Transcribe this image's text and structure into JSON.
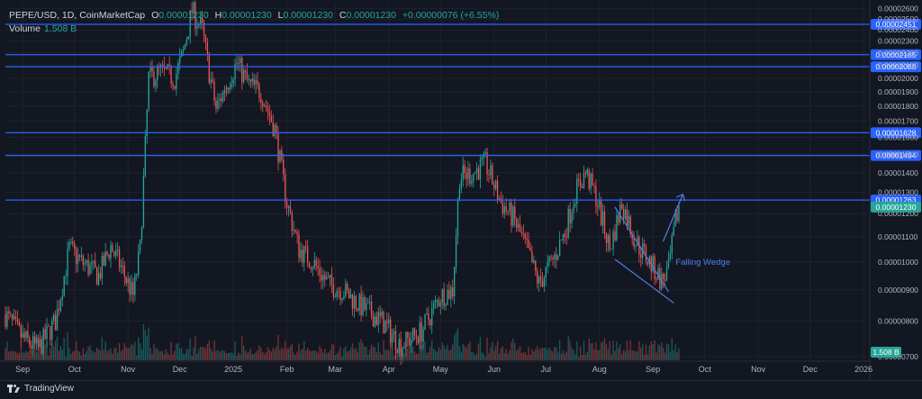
{
  "legend": {
    "symbol": "PEPE/USD, 1D, CoinMarketCap",
    "open_label": "O",
    "open": "0.00001230",
    "high_label": "H",
    "high": "0.00001230",
    "low_label": "L",
    "low": "0.00001230",
    "close_label": "C",
    "close": "0.00001230",
    "change": "+0.00000076 (+6.55%)",
    "volume_label": "Volume",
    "volume_value": "1.508 B"
  },
  "branding": {
    "name": "TradingView",
    "icon": "tradingview-logo-icon"
  },
  "colors": {
    "background": "#131722",
    "grid": "#1e222d",
    "up": "#26a69a",
    "down": "#ef5350",
    "level_line": "#2962ff",
    "annotation": "#4f7fe8",
    "axis_text": "#b2b5be"
  },
  "chart_data": {
    "type": "candlestick",
    "symbol": "PEPE/USD",
    "interval": "1D",
    "y_scale": "log",
    "ylim": [
      6.9e-06,
      2.65e-05
    ],
    "y_ticks": [
      "0.00002600",
      "0.00002500",
      "0.00002400",
      "0.00002300",
      "0.00002200",
      "0.00002100",
      "0.00002000",
      "0.00001900",
      "0.00001800",
      "0.00001700",
      "0.00001600",
      "0.00001500",
      "0.00001400",
      "0.00001300",
      "0.00001200",
      "0.00001100",
      "0.00001000",
      "0.00000900",
      "0.00000800",
      "0.00000700"
    ],
    "x_tick_labels": [
      "Sep",
      "Oct",
      "Nov",
      "Dec",
      "2025",
      "Feb",
      "Mar",
      "Apr",
      "May",
      "Jun",
      "Jul",
      "Aug",
      "Sep",
      "Oct",
      "Nov",
      "Dec",
      "2026"
    ],
    "horizontal_levels": [
      "0.00002451",
      "0.00002185",
      "0.00002088",
      "0.00001628",
      "0.00001494",
      "0.00001263"
    ],
    "last_price": "0.00001230",
    "volume_last": "1.508 B",
    "annotation": {
      "text": "Falling Wedge",
      "wedge_time": [
        "2025-08-10",
        "2025-09-10"
      ],
      "wedge_upper": [
        1.23e-05,
        9.5e-06
      ],
      "wedge_lower": [
        1.01e-05,
        9.1e-06
      ],
      "projection_to": 1.29e-05
    },
    "price_path": [
      [
        "2024-08-22",
        8.2e-06
      ],
      [
        "2024-09-01",
        7.5e-06
      ],
      [
        "2024-09-10",
        7.2e-06
      ],
      [
        "2024-09-20",
        8e-06
      ],
      [
        "2024-09-28",
        1.05e-05
      ],
      [
        "2024-10-05",
        1e-05
      ],
      [
        "2024-10-15",
        9.5e-06
      ],
      [
        "2024-10-22",
        1.06e-05
      ],
      [
        "2024-10-28",
        9.8e-06
      ],
      [
        "2024-11-04",
        8.8e-06
      ],
      [
        "2024-11-08",
        1.05e-05
      ],
      [
        "2024-11-13",
        2e-05
      ],
      [
        "2024-11-20",
        2.05e-05
      ],
      [
        "2024-11-28",
        2e-05
      ],
      [
        "2024-12-03",
        2.2e-05
      ],
      [
        "2024-12-08",
        2.58e-05
      ],
      [
        "2024-12-14",
        2.4e-05
      ],
      [
        "2024-12-18",
        2.05e-05
      ],
      [
        "2024-12-22",
        1.78e-05
      ],
      [
        "2024-12-28",
        1.95e-05
      ],
      [
        "2025-01-03",
        2.12e-05
      ],
      [
        "2025-01-10",
        1.95e-05
      ],
      [
        "2025-01-17",
        1.9e-05
      ],
      [
        "2025-01-25",
        1.65e-05
      ],
      [
        "2025-02-01",
        1.25e-05
      ],
      [
        "2025-02-08",
        1.05e-05
      ],
      [
        "2025-02-16",
        1e-05
      ],
      [
        "2025-02-25",
        9.2e-06
      ],
      [
        "2025-03-05",
        9e-06
      ],
      [
        "2025-03-15",
        8.5e-06
      ],
      [
        "2025-03-28",
        8e-06
      ],
      [
        "2025-04-08",
        7.3e-06
      ],
      [
        "2025-04-20",
        7.7e-06
      ],
      [
        "2025-05-01",
        8.8e-06
      ],
      [
        "2025-05-08",
        9e-06
      ],
      [
        "2025-05-12",
        1.38e-05
      ],
      [
        "2025-05-20",
        1.4e-05
      ],
      [
        "2025-05-27",
        1.45e-05
      ],
      [
        "2025-06-05",
        1.25e-05
      ],
      [
        "2025-06-12",
        1.18e-05
      ],
      [
        "2025-06-20",
        1.05e-05
      ],
      [
        "2025-06-27",
        9.2e-06
      ],
      [
        "2025-07-06",
        1.02e-05
      ],
      [
        "2025-07-12",
        1.12e-05
      ],
      [
        "2025-07-18",
        1.3e-05
      ],
      [
        "2025-07-24",
        1.4e-05
      ],
      [
        "2025-07-30",
        1.28e-05
      ],
      [
        "2025-08-07",
        1.05e-05
      ],
      [
        "2025-08-14",
        1.25e-05
      ],
      [
        "2025-08-22",
        1.08e-05
      ],
      [
        "2025-08-30",
        1e-05
      ],
      [
        "2025-09-06",
        9.3e-06
      ],
      [
        "2025-09-10",
        9.7e-06
      ],
      [
        "2025-09-14",
        1.16e-05
      ],
      [
        "2025-09-16",
        1.23e-05
      ]
    ]
  }
}
